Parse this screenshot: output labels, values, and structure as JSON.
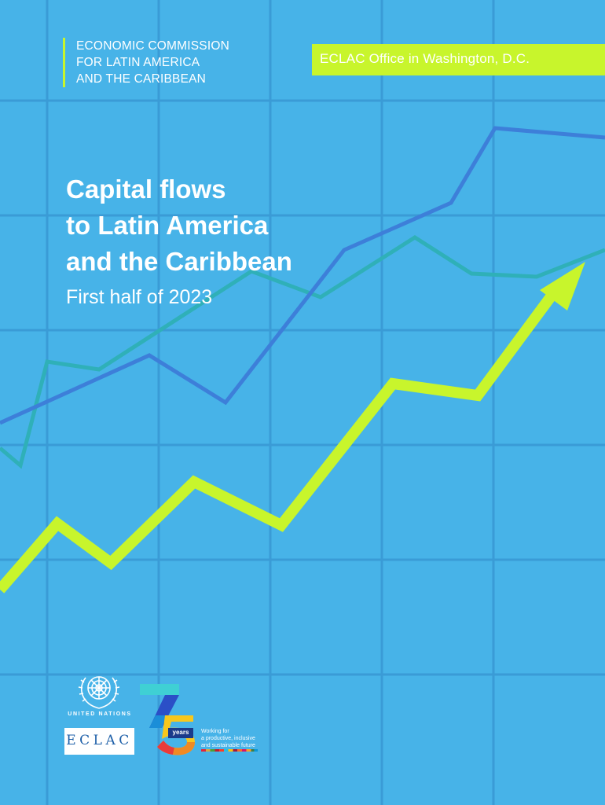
{
  "header": {
    "organization_lines": [
      "ECONOMIC COMMISSION",
      "FOR LATIN AMERICA",
      "AND THE CARIBBEAN"
    ],
    "office_label": "ECLAC Office in Washington, D.C."
  },
  "title": {
    "lines": [
      "Capital flows",
      "to Latin America",
      "and the Caribbean"
    ],
    "subtitle": "First half of 2023"
  },
  "logos": {
    "un_label": "UNITED NATIONS",
    "eclac_label": "ECLAC",
    "anniversary_years": "years",
    "tagline_lines": [
      "Working for",
      "a productive, inclusive",
      "and sustainable future"
    ]
  },
  "colors": {
    "background": "#47b3e8",
    "accent": "#c8f52c",
    "grid": "#3a9bd6",
    "line_blue": "#3d7fd9",
    "line_teal": "#2fb0b8"
  },
  "icons": [
    "un-emblem-icon",
    "eclac-logo-icon",
    "seventy-five-years-icon",
    "trend-arrow-icon"
  ]
}
